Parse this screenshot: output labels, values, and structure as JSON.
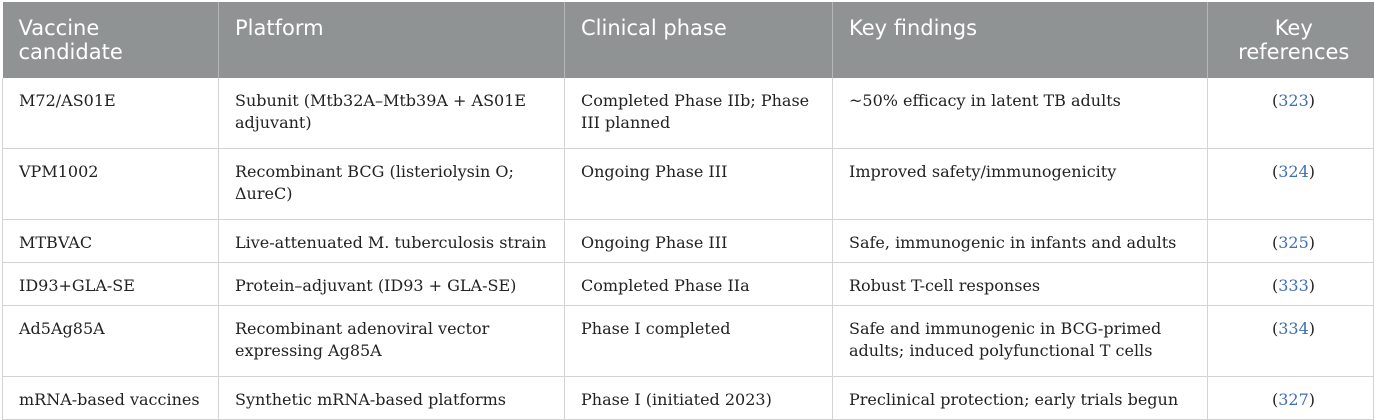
{
  "table": {
    "headers": [
      "Vaccine candidate",
      "Platform",
      "Clinical phase",
      "Key findings",
      "Key references"
    ],
    "rows": [
      {
        "candidate": "M72/AS01E",
        "platform": "Subunit (Mtb32A–Mtb39A + AS01E adjuvant)",
        "phase": "Completed Phase IIb; Phase III planned",
        "findings": "~50% efficacy in latent TB adults",
        "ref": "323"
      },
      {
        "candidate": "VPM1002",
        "platform": "Recombinant BCG (listeriolysin O; ΔureC)",
        "phase": "Ongoing Phase III",
        "findings": "Improved safety/immunogenicity",
        "ref": "324"
      },
      {
        "candidate": "MTBVAC",
        "platform": "Live-attenuated M. tuberculosis strain",
        "phase": "Ongoing Phase III",
        "findings": "Safe, immunogenic in infants and adults",
        "ref": "325"
      },
      {
        "candidate": "ID93+GLA-SE",
        "platform": "Protein–adjuvant (ID93 + GLA-SE)",
        "phase": "Completed Phase IIa",
        "findings": "Robust T-cell responses",
        "ref": "333"
      },
      {
        "candidate": "Ad5Ag85A",
        "platform": "Recombinant adenoviral vector expressing Ag85A",
        "phase": "Phase I completed",
        "findings": "Safe and immunogenic in BCG-primed adults; induced polyfunctional T cells",
        "ref": "334"
      },
      {
        "candidate": "mRNA-based vaccines",
        "platform": "Synthetic mRNA-based platforms",
        "phase": "Phase I (initiated 2023)",
        "findings": "Preclinical protection; early trials begun",
        "ref": "327"
      }
    ]
  },
  "colors": {
    "header_bg": "#8f9394",
    "header_text": "#ffffff",
    "link": "#3f6fb4",
    "grid": "#d3d3d3"
  }
}
